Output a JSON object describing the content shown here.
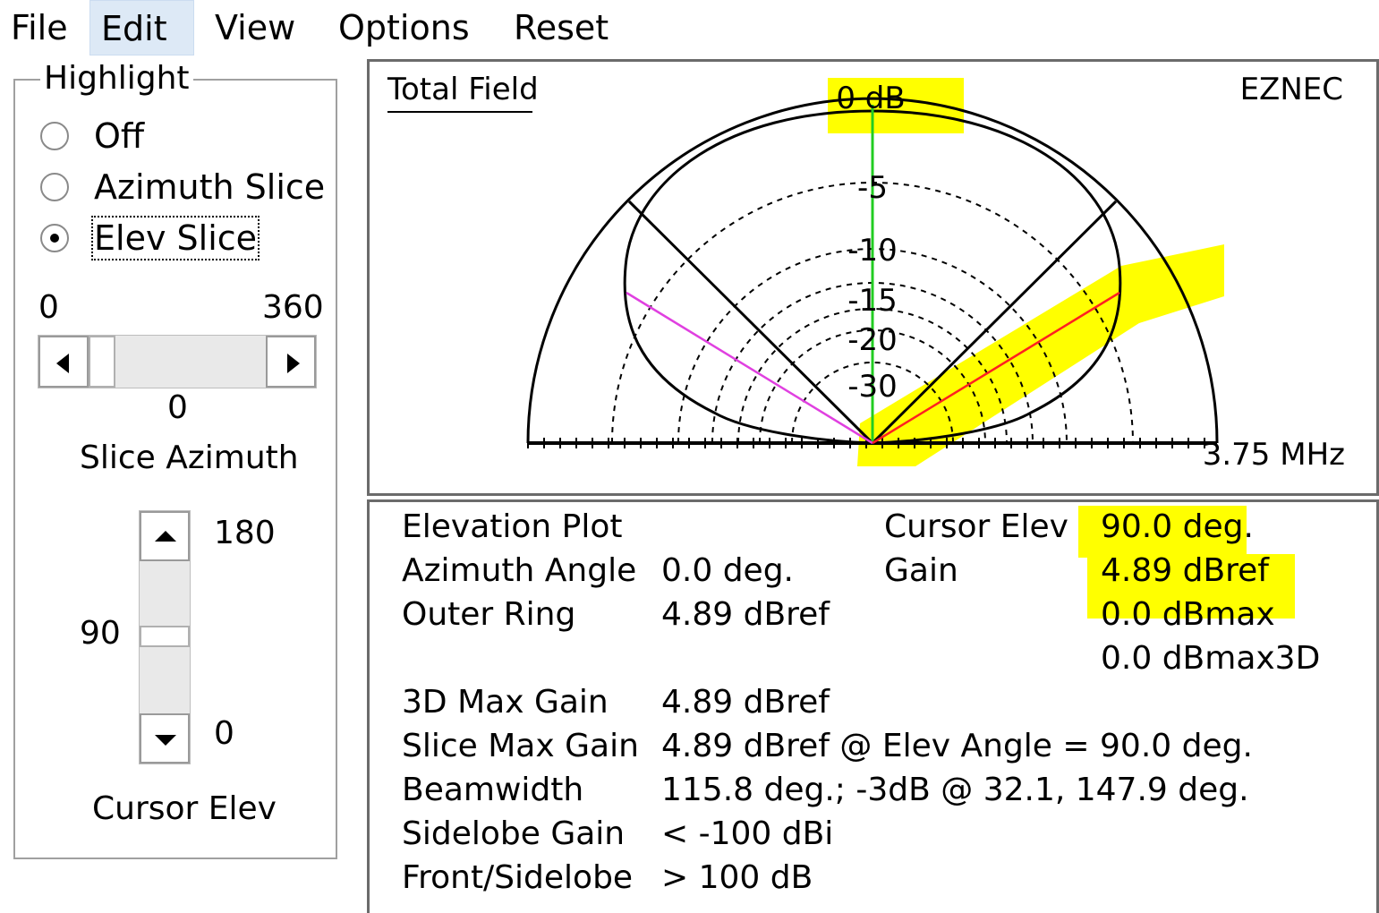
{
  "menu": {
    "file": "File",
    "edit": "Edit",
    "view": "View",
    "options": "Options",
    "reset": "Reset"
  },
  "highlight": {
    "title": "Highlight",
    "options": [
      "Off",
      "Azimuth Slice",
      "Elev Slice"
    ],
    "selected": "Elev Slice"
  },
  "slice_azimuth": {
    "min": "0",
    "max": "360",
    "value": "0",
    "label": "Slice Azimuth"
  },
  "cursor_elev": {
    "max": "180",
    "value": "90",
    "min": "0",
    "label": "Cursor Elev"
  },
  "plot": {
    "title": "Total Field",
    "brand": "EZNEC",
    "frequency": "3.75 MHz",
    "ring_labels": [
      "0 dB",
      "-5",
      "-10",
      "-15",
      "-20",
      "-30"
    ]
  },
  "info": {
    "rows": [
      {
        "label": "Elevation Plot",
        "value": ""
      },
      {
        "label": "Azimuth Angle",
        "value": "0.0 deg."
      },
      {
        "label": "Outer Ring",
        "value": "4.89 dBref"
      },
      {
        "label": "3D Max Gain",
        "value": "4.89 dBref"
      },
      {
        "label": "Slice Max Gain",
        "value": "4.89 dBref @ Elev Angle = 90.0 deg."
      },
      {
        "label": "Beamwidth",
        "value": "115.8 deg.; -3dB @ 32.1, 147.9 deg."
      },
      {
        "label": "Sidelobe Gain",
        "value": "< -100 dBi"
      },
      {
        "label": "Front/Sidelobe",
        "value": "> 100 dB"
      }
    ],
    "cursor": {
      "elev_label": "Cursor Elev",
      "elev_value": "90.0 deg.",
      "gain_label": "Gain",
      "gain_dbref": "4.89 dBref",
      "gain_dbmax": "0.0 dBmax",
      "gain_dbmax3d": "0.0 dBmax3D"
    }
  },
  "colors": {
    "highlight": "#ffff00",
    "cursor_line": "#22cc22",
    "highlight_line": "#ff2020",
    "second_line": "#e040e0",
    "menu_active": "#dde9f6"
  }
}
